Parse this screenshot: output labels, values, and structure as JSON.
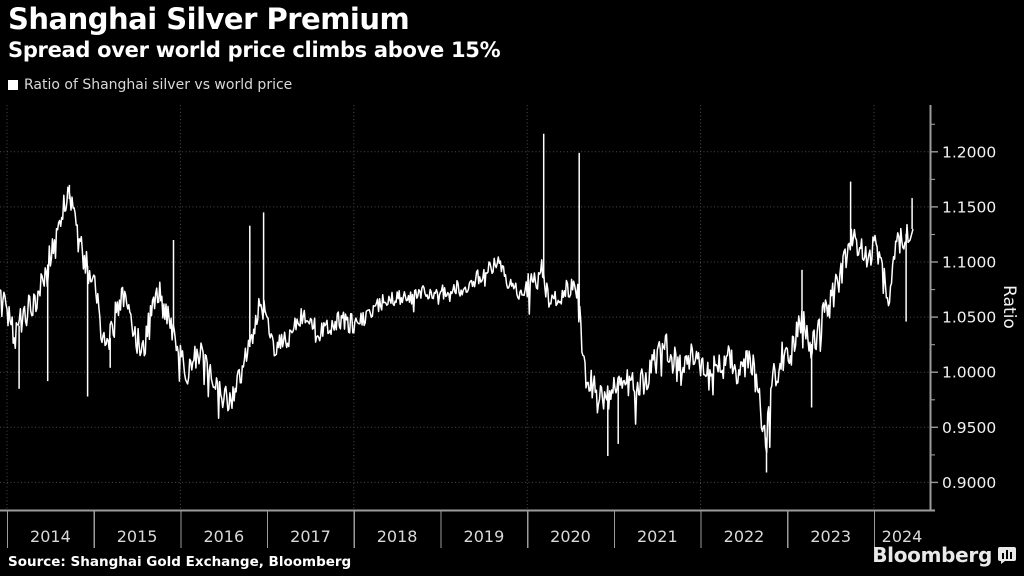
{
  "header": {
    "title": "Shanghai Silver Premium",
    "subtitle": "Spread over world price climbs above 15%"
  },
  "legend": {
    "label": "Ratio of Shanghai silver vs world price",
    "marker_color": "#ffffff"
  },
  "footer": {
    "source": "Source: Shanghai Gold Exchange, Bloomberg",
    "brand": "Bloomberg",
    "brand_icon": "bloomberg-terminal-icon"
  },
  "colors": {
    "background": "#000000",
    "series": "#ffffff",
    "grid": "#4a4a4a",
    "axis": "#9b9b9b",
    "tick_label": "#f2f2f2",
    "year_label": "#d9d9d9",
    "legend_text": "#d9d9d9",
    "brand_text": "#e9e9e9"
  },
  "chart_data": {
    "type": "line",
    "title": "Shanghai Silver Premium",
    "subtitle": "Spread over world price climbs above 15%",
    "ylabel": "Ratio",
    "xlabel": "",
    "grid": "dotted",
    "legend_position": "top-left",
    "axis_side": "right",
    "ylim": [
      0.875,
      1.2425
    ],
    "yticks_major": [
      0.9,
      0.95,
      1.0,
      1.05,
      1.1,
      1.15,
      1.2
    ],
    "ytick_labels": [
      "0.9000",
      "0.9500",
      "1.0000",
      "1.0500",
      "1.1000",
      "1.1500",
      "1.2000"
    ],
    "ytick_minor_step": 0.025,
    "ytick_minor_range": [
      0.875,
      1.225
    ],
    "xticks_years": [
      2014,
      2015,
      2016,
      2017,
      2018,
      2019,
      2020,
      2021,
      2022,
      2023,
      2024
    ],
    "x_gridline_years": [
      2014,
      2016,
      2018,
      2020,
      2022,
      2024
    ],
    "x_monthly_start": 2013.9167,
    "x_end": 2024.45,
    "series": [
      {
        "name": "Ratio of Shanghai silver vs world price",
        "color": "#ffffff",
        "monthly_values": [
          1.075,
          1.055,
          1.032,
          1.047,
          1.058,
          1.065,
          1.085,
          1.105,
          1.13,
          1.152,
          1.16,
          1.115,
          1.098,
          1.09,
          1.04,
          1.022,
          1.055,
          1.07,
          1.048,
          1.028,
          1.022,
          1.058,
          1.072,
          1.052,
          1.038,
          1.018,
          0.995,
          1.012,
          1.018,
          1.0,
          0.988,
          0.975,
          0.976,
          0.99,
          1.012,
          1.03,
          1.06,
          1.048,
          1.02,
          1.026,
          1.032,
          1.042,
          1.05,
          1.044,
          1.038,
          1.036,
          1.042,
          1.046,
          1.046,
          1.042,
          1.048,
          1.053,
          1.058,
          1.064,
          1.068,
          1.066,
          1.072,
          1.068,
          1.074,
          1.07,
          1.073,
          1.076,
          1.068,
          1.078,
          1.073,
          1.08,
          1.086,
          1.09,
          1.095,
          1.099,
          1.085,
          1.076,
          1.071,
          1.076,
          1.082,
          1.09,
          1.072,
          1.066,
          1.071,
          1.076,
          1.068,
          1.0,
          0.988,
          0.983,
          0.975,
          0.99,
          0.994,
          0.988,
          0.985,
          0.99,
          1.0,
          1.012,
          1.026,
          1.014,
          1.0,
          1.006,
          1.014,
          1.01,
          0.996,
          1.002,
          1.006,
          1.012,
          0.996,
          1.002,
          1.012,
          0.985,
          0.934,
          0.99,
          1.012,
          1.016,
          1.032,
          1.05,
          1.022,
          1.032,
          1.05,
          1.062,
          1.082,
          1.1,
          1.12,
          1.112,
          1.102,
          1.115,
          1.105,
          1.058,
          1.112,
          1.122,
          1.13
        ]
      }
    ],
    "spikes": [
      [
        2014.14,
        0.985
      ],
      [
        2014.47,
        0.992
      ],
      [
        2014.72,
        1.17
      ],
      [
        2014.93,
        0.978
      ],
      [
        2015.19,
        1.004
      ],
      [
        2015.92,
        1.12
      ],
      [
        2016.8,
        1.133
      ],
      [
        2016.96,
        1.145
      ],
      [
        2020.19,
        1.2165
      ],
      [
        2020.6,
        1.199
      ],
      [
        2020.93,
        0.924
      ],
      [
        2021.05,
        0.935
      ],
      [
        2022.76,
        0.909
      ],
      [
        2023.17,
        1.093
      ],
      [
        2023.28,
        0.968
      ],
      [
        2023.73,
        1.173
      ],
      [
        2024.37,
        1.046
      ],
      [
        2024.44,
        1.158
      ]
    ],
    "noise_amplitude_by_year": {
      "2013": 0.012,
      "2014": 0.013,
      "2015": 0.013,
      "2016": 0.012,
      "2017": 0.01,
      "2018": 0.007,
      "2019": 0.007,
      "2020": 0.013,
      "2021": 0.015,
      "2022": 0.015,
      "2023": 0.013,
      "2024": 0.012
    }
  }
}
